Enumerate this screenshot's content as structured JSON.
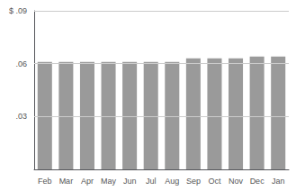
{
  "chart_data": {
    "type": "bar",
    "categories": [
      "Feb",
      "Mar",
      "Apr",
      "May",
      "Jun",
      "Jul",
      "Aug",
      "Sep",
      "Oct",
      "Nov",
      "Dec",
      "Jan"
    ],
    "values": [
      0.061,
      0.061,
      0.061,
      0.061,
      0.061,
      0.061,
      0.061,
      0.063,
      0.063,
      0.063,
      0.064,
      0.064
    ],
    "color": "#9a9a9a",
    "ylim": [
      0,
      0.09
    ],
    "yticks": [
      {
        "value": 0.03,
        "label": ".03"
      },
      {
        "value": 0.06,
        "label": ".06"
      },
      {
        "value": 0.09,
        "label": "$ .09"
      }
    ],
    "grid": true
  }
}
